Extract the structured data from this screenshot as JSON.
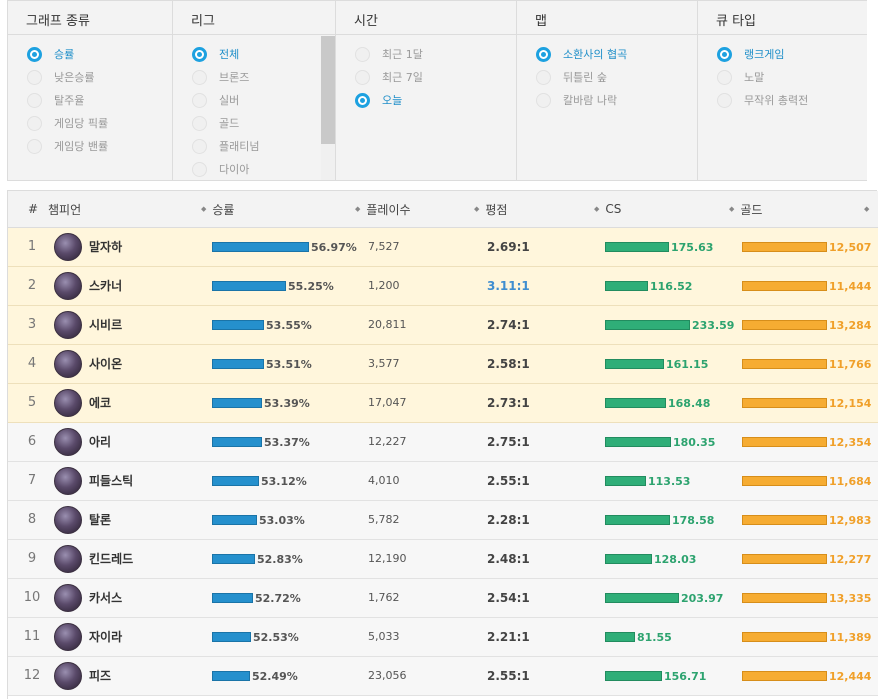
{
  "filters": {
    "graph_type": {
      "label": "그래프 종류",
      "options": [
        {
          "label": "승률",
          "selected": true
        },
        {
          "label": "낮은승률",
          "selected": false
        },
        {
          "label": "탈주율",
          "selected": false
        },
        {
          "label": "게임당 픽률",
          "selected": false
        },
        {
          "label": "게임당 밴률",
          "selected": false
        }
      ]
    },
    "league": {
      "label": "리그",
      "options": [
        {
          "label": "전체",
          "selected": true
        },
        {
          "label": "브론즈",
          "selected": false
        },
        {
          "label": "실버",
          "selected": false
        },
        {
          "label": "골드",
          "selected": false
        },
        {
          "label": "플래티넘",
          "selected": false
        },
        {
          "label": "다이아",
          "selected": false
        }
      ]
    },
    "time": {
      "label": "시간",
      "options": [
        {
          "label": "최근 1달",
          "selected": false
        },
        {
          "label": "최근 7일",
          "selected": false
        },
        {
          "label": "오늘",
          "selected": true
        }
      ]
    },
    "map": {
      "label": "맵",
      "options": [
        {
          "label": "소환사의 협곡",
          "selected": true
        },
        {
          "label": "뒤틀린 숲",
          "selected": false
        },
        {
          "label": "칼바람 나락",
          "selected": false
        }
      ]
    },
    "queue": {
      "label": "큐 타입",
      "options": [
        {
          "label": "랭크게임",
          "selected": true
        },
        {
          "label": "노말",
          "selected": false
        },
        {
          "label": "무작위 총력전",
          "selected": false
        }
      ]
    }
  },
  "table": {
    "headers": {
      "rank": "#",
      "champion": "챔피언",
      "winrate": "승률",
      "plays": "플레이수",
      "kda": "평점",
      "cs": "CS",
      "gold": "골드"
    },
    "rows": [
      {
        "rank": "1",
        "name": "말자하",
        "winrate": "56.97%",
        "winrate_value": 56.97,
        "plays": "7,527",
        "kda": "2.69:1",
        "cs": "175.63",
        "cs_value": 175.63,
        "gold": "12,507",
        "highlight": true,
        "kda_blue": false
      },
      {
        "rank": "2",
        "name": "스카너",
        "winrate": "55.25%",
        "winrate_value": 55.25,
        "plays": "1,200",
        "kda": "3.11:1",
        "cs": "116.52",
        "cs_value": 116.52,
        "gold": "11,444",
        "highlight": true,
        "kda_blue": true
      },
      {
        "rank": "3",
        "name": "시비르",
        "winrate": "53.55%",
        "winrate_value": 53.55,
        "plays": "20,811",
        "kda": "2.74:1",
        "cs": "233.59",
        "cs_value": 233.59,
        "gold": "13,284",
        "highlight": true,
        "kda_blue": false
      },
      {
        "rank": "4",
        "name": "사이온",
        "winrate": "53.51%",
        "winrate_value": 53.51,
        "plays": "3,577",
        "kda": "2.58:1",
        "cs": "161.15",
        "cs_value": 161.15,
        "gold": "11,766",
        "highlight": true,
        "kda_blue": false
      },
      {
        "rank": "5",
        "name": "에코",
        "winrate": "53.39%",
        "winrate_value": 53.39,
        "plays": "17,047",
        "kda": "2.73:1",
        "cs": "168.48",
        "cs_value": 168.48,
        "gold": "12,154",
        "highlight": true,
        "kda_blue": false
      },
      {
        "rank": "6",
        "name": "아리",
        "winrate": "53.37%",
        "winrate_value": 53.37,
        "plays": "12,227",
        "kda": "2.75:1",
        "cs": "180.35",
        "cs_value": 180.35,
        "gold": "12,354",
        "highlight": false,
        "kda_blue": false
      },
      {
        "rank": "7",
        "name": "피들스틱",
        "winrate": "53.12%",
        "winrate_value": 53.12,
        "plays": "4,010",
        "kda": "2.55:1",
        "cs": "113.53",
        "cs_value": 113.53,
        "gold": "11,684",
        "highlight": false,
        "kda_blue": false
      },
      {
        "rank": "8",
        "name": "탈론",
        "winrate": "53.03%",
        "winrate_value": 53.03,
        "plays": "5,782",
        "kda": "2.28:1",
        "cs": "178.58",
        "cs_value": 178.58,
        "gold": "12,983",
        "highlight": false,
        "kda_blue": false
      },
      {
        "rank": "9",
        "name": "킨드레드",
        "winrate": "52.83%",
        "winrate_value": 52.83,
        "plays": "12,190",
        "kda": "2.48:1",
        "cs": "128.03",
        "cs_value": 128.03,
        "gold": "12,277",
        "highlight": false,
        "kda_blue": false
      },
      {
        "rank": "10",
        "name": "카서스",
        "winrate": "52.72%",
        "winrate_value": 52.72,
        "plays": "1,762",
        "kda": "2.54:1",
        "cs": "203.97",
        "cs_value": 203.97,
        "gold": "13,335",
        "highlight": false,
        "kda_blue": false
      },
      {
        "rank": "11",
        "name": "자이라",
        "winrate": "52.53%",
        "winrate_value": 52.53,
        "plays": "5,033",
        "kda": "2.21:1",
        "cs": "81.55",
        "cs_value": 81.55,
        "gold": "11,389",
        "highlight": false,
        "kda_blue": false
      },
      {
        "rank": "12",
        "name": "피즈",
        "winrate": "52.49%",
        "winrate_value": 52.49,
        "plays": "23,056",
        "kda": "2.55:1",
        "cs": "156.71",
        "cs_value": 156.71,
        "gold": "12,444",
        "highlight": false,
        "kda_blue": false
      }
    ]
  },
  "colors": {
    "accent": "#1da1e0",
    "winrate_bar": "#2590cd",
    "cs_bar": "#2fae78",
    "gold_bar": "#f6ac32",
    "highlight_row": "#fff6dc"
  },
  "icons": {
    "sort": "sort-arrows-icon",
    "radio_selected": "radio-selected-icon",
    "radio": "radio-icon"
  }
}
